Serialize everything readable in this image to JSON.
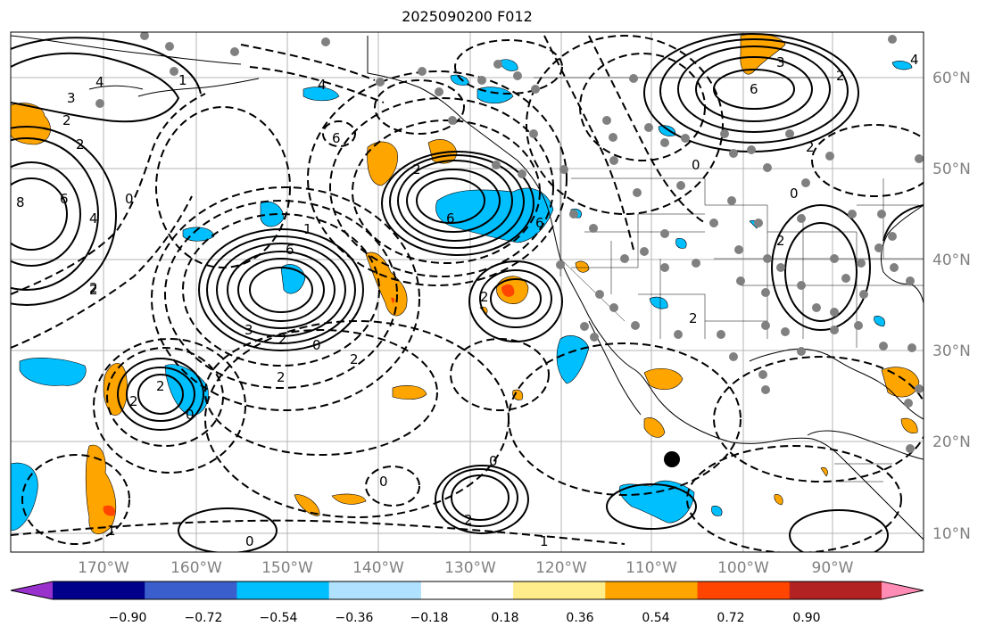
{
  "title": "2025090200 F012",
  "lat_labels": [
    "60°N",
    "50°N",
    "40°N",
    "30°N",
    "20°N",
    "10°N"
  ],
  "lon_labels": [
    "170°W",
    "160°W",
    "150°W",
    "140°W",
    "130°W",
    "120°W",
    "110°W",
    "100°W",
    "90°W"
  ],
  "colorbar": {
    "ticks": [
      "−0.90",
      "−0.72",
      "−0.54",
      "−0.36",
      "−0.18",
      "0.18",
      "0.36",
      "0.54",
      "0.72",
      "0.90"
    ],
    "colors": [
      "#9932cc",
      "#00008b",
      "#3a5fcd",
      "#00bfff",
      "#b0e2ff",
      "#ffffff",
      "#ffec8b",
      "#ffa500",
      "#ff4500",
      "#b22222",
      "#ff8cb4"
    ]
  },
  "colors": {
    "positive_fill": "#ffa500",
    "positive_strong": "#ff4500",
    "negative_fill": "#00bfff",
    "station": "#808080",
    "grid": "#b4b4b4"
  },
  "contour_labels": [
    "2",
    "4",
    "6",
    "8",
    "0",
    "2",
    "3",
    "1",
    "2",
    "4",
    "6",
    "2",
    "3",
    "6",
    "2",
    "4",
    "1",
    "3",
    "6",
    "2",
    "2",
    "0",
    "2",
    "2",
    "6",
    "0",
    "4",
    "2",
    "0",
    "2",
    "0",
    "2",
    "2",
    "0",
    "0",
    "1",
    "0",
    "2",
    "2",
    "1",
    "2",
    "6"
  ],
  "markers": {
    "point_marker": "black-dot"
  }
}
